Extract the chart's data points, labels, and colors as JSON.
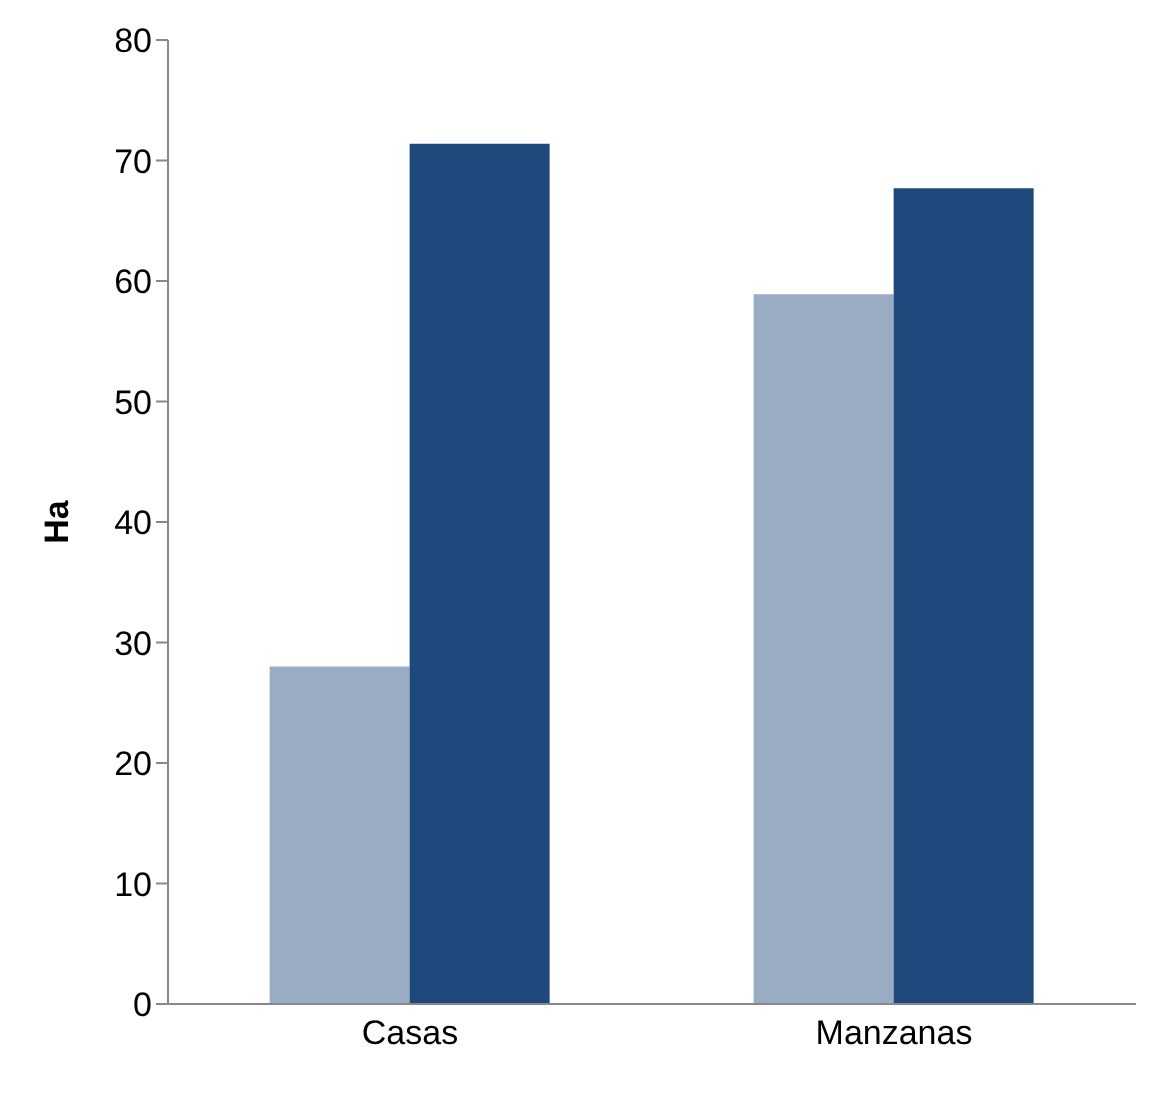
{
  "chart_data": {
    "type": "bar",
    "ylabel": "Ha",
    "categories": [
      "Casas",
      "Manzanas"
    ],
    "series": [
      {
        "color": "#9aabc4",
        "values": [
          28,
          58.9
        ]
      },
      {
        "color": "#1f497d",
        "values": [
          71.4,
          67.7
        ]
      }
    ],
    "ylim": [
      0,
      80
    ],
    "yticks": [
      0,
      10,
      20,
      30,
      40,
      50,
      60,
      70,
      80
    ],
    "grid": false,
    "legend": false
  }
}
